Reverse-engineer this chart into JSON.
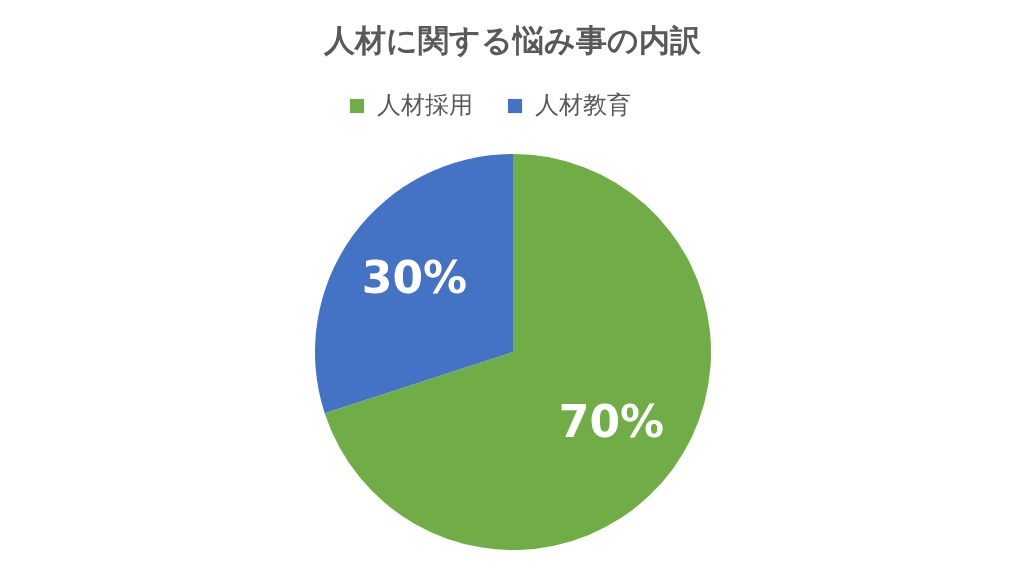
{
  "chart_data": {
    "type": "pie",
    "title": "人材に関する悩み事の内訳",
    "categories": [
      "人材採用",
      "人材教育"
    ],
    "values": [
      70,
      30
    ],
    "colors": [
      "#70ad47",
      "#4472c4"
    ],
    "value_labels": [
      "70%",
      "30%"
    ],
    "legend": "top"
  }
}
